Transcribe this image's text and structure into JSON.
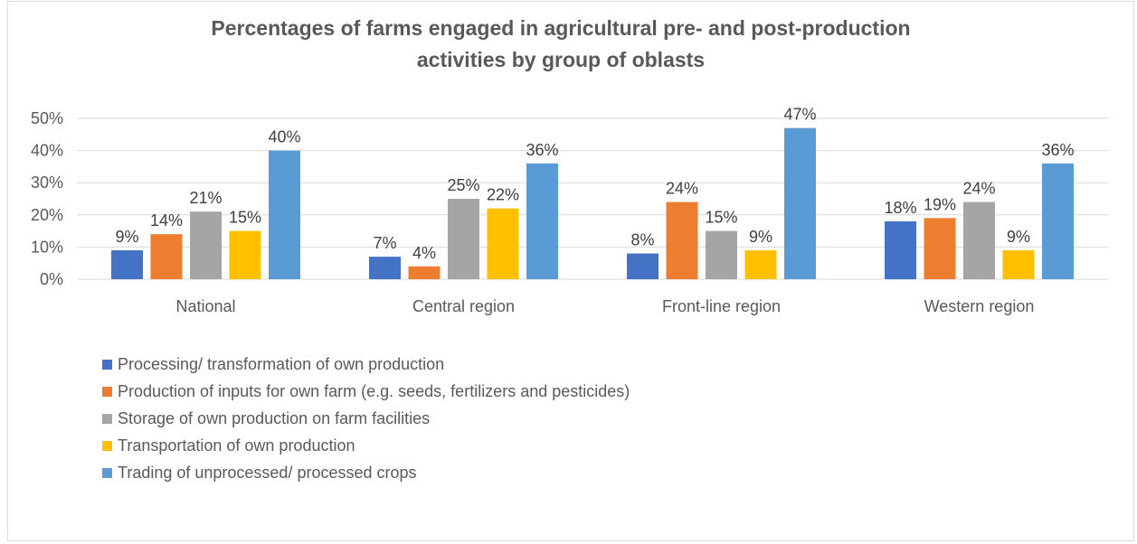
{
  "chart_data": {
    "type": "bar",
    "title": "Percentages of farms engaged in agricultural  pre- and post-production activities by group of oblasts",
    "title_lines": [
      "Percentages of farms engaged in agricultural  pre- and post-production",
      "activities by group of oblasts"
    ],
    "categories": [
      "National",
      "Central region",
      "Front-line region",
      "Western region"
    ],
    "series": [
      {
        "name": "Processing/ transformation of own production",
        "color": "#4472C4",
        "values": [
          9,
          7,
          8,
          18
        ],
        "labels": [
          "9%",
          "7%",
          "8%",
          "18%"
        ]
      },
      {
        "name": "Production of inputs for own farm (e.g. seeds, fertilizers and pesticides)",
        "color": "#ED7D31",
        "values": [
          14,
          4,
          24,
          19
        ],
        "labels": [
          "14%",
          "4%",
          "24%",
          "19%"
        ]
      },
      {
        "name": "Storage of own production on farm facilities",
        "color": "#A5A5A5",
        "values": [
          21,
          25,
          15,
          24
        ],
        "labels": [
          "21%",
          "25%",
          "15%",
          "24%"
        ]
      },
      {
        "name": "Transportation of own production",
        "color": "#FFC000",
        "values": [
          15,
          22,
          9,
          9
        ],
        "labels": [
          "15%",
          "22%",
          "9%",
          "9%"
        ]
      },
      {
        "name": "Trading of unprocessed/ processed crops",
        "color": "#5B9BD5",
        "values": [
          40,
          36,
          47,
          36
        ],
        "labels": [
          "40%",
          "36%",
          "47%",
          "36%"
        ]
      }
    ],
    "ylim": [
      0,
      50
    ],
    "yticks": [
      0,
      10,
      20,
      30,
      40,
      50
    ],
    "ytick_labels": [
      "0%",
      "10%",
      "20%",
      "30%",
      "40%",
      "50%"
    ],
    "xlabel": "",
    "ylabel": "",
    "grid": true,
    "legend_position": "bottom-left"
  }
}
